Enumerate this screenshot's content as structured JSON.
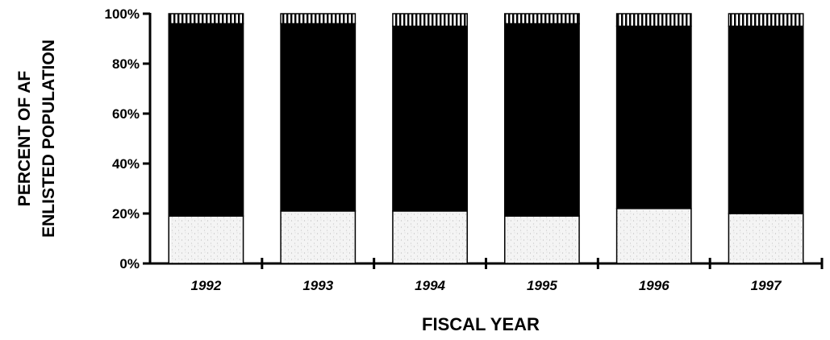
{
  "chart_data": {
    "type": "bar",
    "stacked": true,
    "percent": true,
    "title": "",
    "xlabel": "FISCAL YEAR",
    "ylabel_lines": [
      "PERCENT OF AF",
      "ENLISTED POPULATION"
    ],
    "categories": [
      "1992",
      "1993",
      "1994",
      "1995",
      "1996",
      "1997"
    ],
    "yticks": [
      "0%",
      "20%",
      "40%",
      "60%",
      "80%",
      "100%"
    ],
    "ylim": [
      0,
      100
    ],
    "grid": false,
    "legend": "none",
    "series": [
      {
        "values": [
          19,
          21,
          21,
          19,
          22,
          20
        ],
        "color": "#f2f2f2",
        "pattern": "stipple"
      },
      {
        "values": [
          77,
          75,
          74,
          77,
          73,
          75
        ],
        "color": "#000000",
        "pattern": "solid"
      },
      {
        "values": [
          4,
          4,
          5,
          4,
          5,
          5
        ],
        "color": "#ffffff",
        "pattern": "vertical-hatch"
      }
    ]
  }
}
